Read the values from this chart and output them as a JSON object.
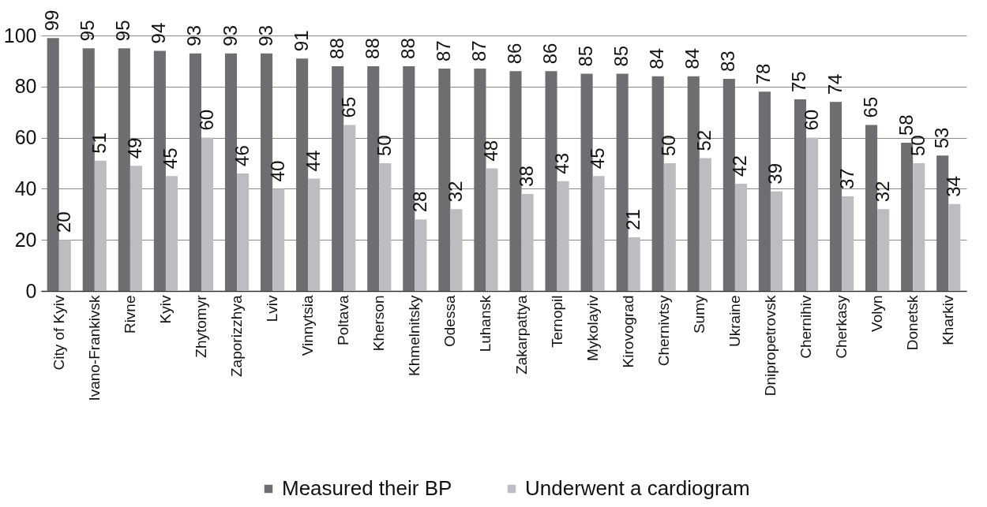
{
  "chart_data": {
    "type": "bar",
    "categories": [
      "City of Kyiv",
      "Ivano-Frankivsk",
      "Rivne",
      "Kyiv",
      "Zhytomyr",
      "Zaporizzhya",
      "Lviv",
      "Vinnytsia",
      "Poltava",
      "Kherson",
      "Khmelnitsky",
      "Odessa",
      "Luhansk",
      "Zakarpattya",
      "Ternopil",
      "Mykolayiv",
      "Kirovograd",
      "Chernivtsy",
      "Sumy",
      "Ukraine",
      "Dnipropetrovsk",
      "Chernihiv",
      "Cherkasy",
      "Volyn",
      "Donetsk",
      "Kharkiv"
    ],
    "series": [
      {
        "name": "Measured their BP",
        "color": "#6d6e71",
        "values": [
          99,
          95,
          95,
          94,
          93,
          93,
          93,
          91,
          88,
          88,
          88,
          87,
          87,
          86,
          86,
          85,
          85,
          84,
          84,
          83,
          78,
          75,
          74,
          65,
          58,
          53
        ]
      },
      {
        "name": "Underwent a cardiogram",
        "color": "#bcbdc0",
        "values": [
          20,
          51,
          49,
          45,
          60,
          46,
          40,
          44,
          65,
          50,
          28,
          32,
          48,
          38,
          43,
          45,
          21,
          50,
          52,
          42,
          39,
          60,
          37,
          32,
          50,
          34
        ]
      }
    ],
    "ylim": [
      0,
      100
    ],
    "yticks": [
      0,
      20,
      40,
      60,
      80,
      100
    ],
    "grid": "y",
    "legend": "bottom",
    "data_labels": true
  }
}
